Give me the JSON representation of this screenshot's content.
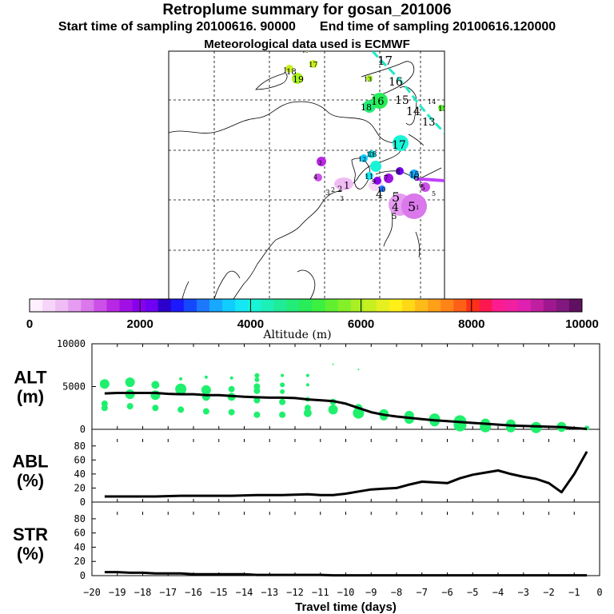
{
  "header": {
    "title": "Retroplume summary for gosan_201006",
    "start_label": "Start time of sampling 20100616. 90000",
    "end_label": "End time of sampling 20100616.120000",
    "met_label": "Meteorological data used is ECMWF"
  },
  "colors": {
    "plume_green": "#1ef06e",
    "line": "#000000",
    "track_cyan": "#20e8c8",
    "track_magenta": "#c040ff"
  },
  "colorbar": {
    "label": "Altitude (m)",
    "ticks": [
      "0",
      "2000",
      "4000",
      "6000",
      "8000",
      "10000"
    ],
    "colors": [
      "#fff0ff",
      "#f6d6f8",
      "#f0bcf4",
      "#e69cf0",
      "#da78ec",
      "#cc50e8",
      "#b828e4",
      "#a010e4",
      "#8a00ec",
      "#7000f4",
      "#2c00cc",
      "#1c18ff",
      "#1448ff",
      "#1c78ff",
      "#18a8ff",
      "#10ccff",
      "#14e8f4",
      "#18f4d8",
      "#1cf0b8",
      "#20ec98",
      "#24ec78",
      "#28ec58",
      "#3cf040",
      "#60f030",
      "#84f028",
      "#a8f024",
      "#c8f020",
      "#e6f020",
      "#fff018",
      "#ffd818",
      "#ffbc18",
      "#ffa018",
      "#ff8418",
      "#ff6018",
      "#ff3018",
      "#ff1850",
      "#ff1c90",
      "#f020a0",
      "#e020b0",
      "#c020a0",
      "#a01890",
      "#801880",
      "#601060"
    ]
  },
  "map": {
    "numbers": [
      "1",
      "18",
      "19",
      "17",
      "16",
      "13",
      "18",
      "16",
      "15",
      "14",
      "13",
      "17",
      "16",
      "15",
      "14",
      "13",
      "12",
      "11",
      "10",
      "9",
      "8",
      "7",
      "6",
      "5",
      "4",
      "3",
      "2",
      "1",
      "17",
      "18",
      "15",
      "4",
      "5",
      "4",
      "5",
      "5",
      "6",
      "5",
      "3",
      "2",
      "1",
      "3"
    ]
  },
  "chart_data": [
    {
      "type": "line",
      "id": "alt",
      "ylabel": "ALT\n(m)",
      "ylabel_lines": [
        "ALT",
        "(m)"
      ],
      "ylim": [
        0,
        10000
      ],
      "yticks": [
        "0",
        "5000",
        "10000"
      ],
      "x": [
        -19.5,
        -19,
        -18.5,
        -18,
        -17.5,
        -17,
        -16.5,
        -16,
        -15.5,
        -15,
        -14.5,
        -14,
        -13.5,
        -13,
        -12.5,
        -12,
        -11.5,
        -11,
        -10.5,
        -10,
        -9.5,
        -9,
        -8.5,
        -8,
        -7.5,
        -7,
        -6.5,
        -6,
        -5.5,
        -5,
        -4.5,
        -4,
        -3.5,
        -3,
        -2.5,
        -2,
        -1.5,
        -1,
        -0.5
      ],
      "values": [
        4200,
        4250,
        4250,
        4250,
        4250,
        4150,
        4100,
        4100,
        4000,
        4000,
        3900,
        3800,
        3750,
        3700,
        3700,
        3650,
        3500,
        3400,
        3300,
        3000,
        2500,
        2000,
        1700,
        1500,
        1350,
        1200,
        1050,
        950,
        850,
        750,
        650,
        550,
        450,
        400,
        350,
        300,
        250,
        150,
        50
      ],
      "plume_points": [
        {
          "x": -19.5,
          "y": 5300,
          "s": 6
        },
        {
          "x": -19.5,
          "y": 3000,
          "s": 4
        },
        {
          "x": -19.5,
          "y": 2500,
          "s": 4
        },
        {
          "x": -18.5,
          "y": 5500,
          "s": 6
        },
        {
          "x": -18.5,
          "y": 4100,
          "s": 6
        },
        {
          "x": -18.5,
          "y": 2700,
          "s": 4
        },
        {
          "x": -17.5,
          "y": 5200,
          "s": 5
        },
        {
          "x": -17.5,
          "y": 4000,
          "s": 6
        },
        {
          "x": -17.5,
          "y": 2500,
          "s": 4
        },
        {
          "x": -16.5,
          "y": 5900,
          "s": 2
        },
        {
          "x": -16.5,
          "y": 4700,
          "s": 7
        },
        {
          "x": -16.5,
          "y": 2300,
          "s": 4
        },
        {
          "x": -15.5,
          "y": 6100,
          "s": 2
        },
        {
          "x": -15.5,
          "y": 4600,
          "s": 6
        },
        {
          "x": -15.5,
          "y": 3800,
          "s": 5
        },
        {
          "x": -15.5,
          "y": 2100,
          "s": 4
        },
        {
          "x": -14.5,
          "y": 6000,
          "s": 2
        },
        {
          "x": -14.5,
          "y": 4700,
          "s": 4
        },
        {
          "x": -14.5,
          "y": 3800,
          "s": 5
        },
        {
          "x": -14.5,
          "y": 2000,
          "s": 4
        },
        {
          "x": -13.5,
          "y": 6300,
          "s": 3
        },
        {
          "x": -13.5,
          "y": 5800,
          "s": 3
        },
        {
          "x": -13.5,
          "y": 5000,
          "s": 4
        },
        {
          "x": -13.5,
          "y": 4500,
          "s": 4
        },
        {
          "x": -13.5,
          "y": 3400,
          "s": 4
        },
        {
          "x": -13.5,
          "y": 1700,
          "s": 4
        },
        {
          "x": -12.5,
          "y": 6300,
          "s": 2
        },
        {
          "x": -12.5,
          "y": 5200,
          "s": 3
        },
        {
          "x": -12.5,
          "y": 4400,
          "s": 3
        },
        {
          "x": -12.5,
          "y": 3200,
          "s": 4
        },
        {
          "x": -12.5,
          "y": 1700,
          "s": 4
        },
        {
          "x": -11.5,
          "y": 6300,
          "s": 2
        },
        {
          "x": -11.5,
          "y": 5200,
          "s": 2
        },
        {
          "x": -11.5,
          "y": 3500,
          "s": 3
        },
        {
          "x": -11.5,
          "y": 2500,
          "s": 4
        },
        {
          "x": -11.5,
          "y": 1900,
          "s": 5
        },
        {
          "x": -10.5,
          "y": 7600,
          "s": 1
        },
        {
          "x": -10.5,
          "y": 3200,
          "s": 4
        },
        {
          "x": -10.5,
          "y": 2300,
          "s": 6
        },
        {
          "x": -9.5,
          "y": 7000,
          "s": 1
        },
        {
          "x": -9.5,
          "y": 2500,
          "s": 5
        },
        {
          "x": -9.5,
          "y": 1900,
          "s": 7
        },
        {
          "x": -8.5,
          "y": 1800,
          "s": 6
        },
        {
          "x": -8.5,
          "y": 1500,
          "s": 5
        },
        {
          "x": -7.5,
          "y": 1600,
          "s": 6
        },
        {
          "x": -7.5,
          "y": 1200,
          "s": 6
        },
        {
          "x": -6.5,
          "y": 1200,
          "s": 7
        },
        {
          "x": -6.5,
          "y": 900,
          "s": 6
        },
        {
          "x": -5.5,
          "y": 900,
          "s": 8
        },
        {
          "x": -5.5,
          "y": 500,
          "s": 8
        },
        {
          "x": -4.5,
          "y": 700,
          "s": 6
        },
        {
          "x": -4.5,
          "y": 300,
          "s": 7
        },
        {
          "x": -3.5,
          "y": 600,
          "s": 6
        },
        {
          "x": -3.5,
          "y": 200,
          "s": 6
        },
        {
          "x": -2.5,
          "y": 400,
          "s": 5
        },
        {
          "x": -2.5,
          "y": 200,
          "s": 7
        },
        {
          "x": -1.5,
          "y": 300,
          "s": 6
        },
        {
          "x": -1.5,
          "y": 150,
          "s": 5
        },
        {
          "x": -0.5,
          "y": 150,
          "s": 3
        }
      ]
    },
    {
      "type": "line",
      "id": "abl",
      "ylabel": "ABL\n(%)",
      "ylabel_lines": [
        "ABL",
        "(%)"
      ],
      "ylim": [
        0,
        90
      ],
      "yticks": [
        "0",
        "20",
        "40",
        "60",
        "80"
      ],
      "x": [
        -19.5,
        -18.5,
        -17.5,
        -16.5,
        -15.5,
        -14.5,
        -13.5,
        -12.5,
        -11.5,
        -11,
        -10.5,
        -10,
        -9.5,
        -9,
        -8.5,
        -8,
        -7.5,
        -7,
        -6.5,
        -6,
        -5.5,
        -5,
        -4.5,
        -4,
        -3.5,
        -3,
        -2.5,
        -2,
        -1.5,
        -1,
        -0.5
      ],
      "values": [
        8,
        8,
        8,
        9,
        9,
        9,
        10,
        10,
        11,
        10,
        10,
        12,
        15,
        18,
        19,
        20,
        25,
        29,
        28,
        27,
        34,
        39,
        42,
        45,
        40,
        36,
        33,
        27,
        14,
        40,
        72
      ]
    },
    {
      "type": "line",
      "id": "str",
      "ylabel": "STR\n(%)",
      "ylabel_lines": [
        "STR",
        "(%)"
      ],
      "ylim": [
        0,
        90
      ],
      "yticks": [
        "0",
        "20",
        "40",
        "60",
        "80"
      ],
      "x": [
        -19.5,
        -19,
        -18.5,
        -18,
        -17.5,
        -17,
        -16.5,
        -16,
        -15.5,
        -15,
        -14.5,
        -14,
        -13.5,
        -13,
        -12.5,
        -12,
        -11.5,
        -11,
        -10.5,
        -10,
        -9.5,
        -9,
        -8.5,
        -8,
        -7.5,
        -7,
        -6.5,
        -6,
        -5.5,
        -5,
        -4.5,
        -4,
        -3.5,
        -3,
        -2.5,
        -2,
        -1.5,
        -1,
        -0.5
      ],
      "values": [
        5,
        5,
        4,
        4,
        3,
        3,
        3,
        2,
        2,
        2,
        2,
        2,
        1,
        1,
        1,
        1,
        1,
        1,
        0.5,
        0.5,
        0.5,
        0.5,
        0.5,
        0.5,
        0.5,
        0.5,
        0.5,
        0.5,
        0.5,
        0.5,
        0.5,
        0.5,
        0.5,
        0.5,
        0.5,
        0.5,
        0.5,
        0.5,
        0.5
      ]
    }
  ],
  "xaxis": {
    "label": "Travel time (days)",
    "xlim": [
      -20,
      0
    ],
    "ticks": [
      "−20",
      "−19",
      "−18",
      "−17",
      "−16",
      "−15",
      "−14",
      "−13",
      "−12",
      "−11",
      "−10",
      "−9",
      "−8",
      "−7",
      "−6",
      "−5",
      "−4",
      "−3",
      "−2",
      "−1",
      "0"
    ]
  }
}
